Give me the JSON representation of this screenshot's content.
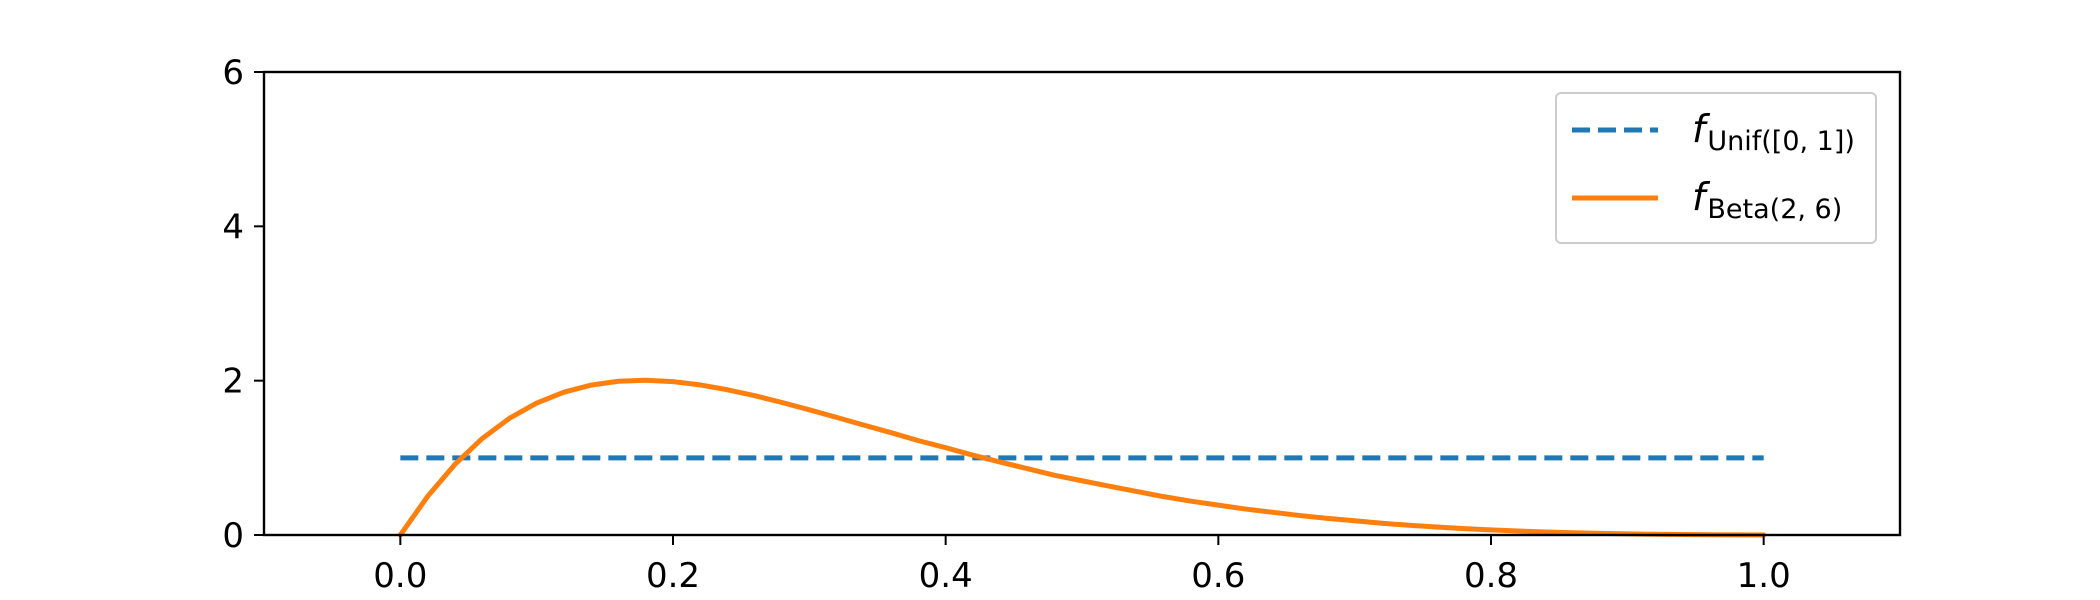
{
  "chart_data": {
    "type": "line",
    "title": "",
    "xlabel": "",
    "ylabel": "",
    "xlim": [
      -0.1,
      1.1
    ],
    "ylim": [
      0,
      6
    ],
    "x_ticks": [
      0.0,
      0.2,
      0.4,
      0.6,
      0.8,
      1.0
    ],
    "x_tick_labels": [
      "0.0",
      "0.2",
      "0.4",
      "0.6",
      "0.8",
      "1.0"
    ],
    "y_ticks": [
      0,
      2,
      4,
      6
    ],
    "y_tick_labels": [
      "0",
      "2",
      "4",
      "6"
    ],
    "grid": false,
    "legend_position": "top-right",
    "series": [
      {
        "name_main": "f",
        "name_sub": "Unif([0, 1])",
        "style": "dashed",
        "color": "#1f77b4",
        "x": [
          0.0,
          1.0
        ],
        "y": [
          1.0,
          1.0
        ]
      },
      {
        "name_main": "f",
        "name_sub": "Beta(2, 6)",
        "style": "solid",
        "color": "#ff7f0e",
        "x": [
          0.0,
          0.02,
          0.04,
          0.06,
          0.08,
          0.1,
          0.12,
          0.14,
          0.16,
          0.18,
          0.2,
          0.22,
          0.24,
          0.26,
          0.28,
          0.3,
          0.32,
          0.34,
          0.36,
          0.38,
          0.4,
          0.42,
          0.44,
          0.46,
          0.48,
          0.5,
          0.52,
          0.54,
          0.56,
          0.58,
          0.6,
          0.62,
          0.64,
          0.66,
          0.68,
          0.7,
          0.72,
          0.74,
          0.76,
          0.78,
          0.8,
          0.82,
          0.84,
          0.86,
          0.88,
          0.9,
          0.92,
          0.94,
          0.96,
          0.98,
          1.0
        ],
        "y": [
          0.0,
          0.5,
          0.914,
          1.249,
          1.512,
          1.71,
          1.851,
          1.943,
          1.992,
          2.005,
          1.987,
          1.945,
          1.882,
          1.805,
          1.717,
          1.622,
          1.524,
          1.424,
          1.326,
          1.223,
          1.131,
          1.034,
          0.945,
          0.86,
          0.774,
          0.703,
          0.633,
          0.565,
          0.497,
          0.438,
          0.387,
          0.336,
          0.294,
          0.252,
          0.215,
          0.184,
          0.152,
          0.126,
          0.103,
          0.083,
          0.067,
          0.052,
          0.039,
          0.029,
          0.021,
          0.015,
          0.01,
          0.006,
          0.004,
          0.002,
          0.0
        ]
      }
    ]
  }
}
